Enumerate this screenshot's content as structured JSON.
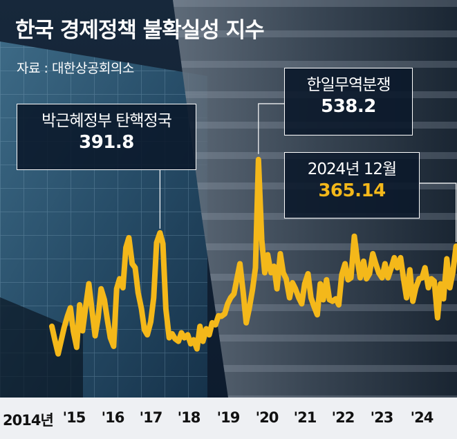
{
  "title": "한국 경제정책 불확실성 지수",
  "source": "자료 : 대한상공회의소",
  "colors": {
    "line": "#f4b81a",
    "highlight_value": "#f4b81a",
    "callout_border": "#ffffff"
  },
  "callouts": {
    "impeachment": {
      "label": "박근혜정부 탄핵정국",
      "value": "391.8"
    },
    "trade_dispute": {
      "label": "한일무역분쟁",
      "value": "538.2"
    },
    "latest": {
      "label": "2024년 12월",
      "value": "365.14"
    }
  },
  "chart_data": {
    "type": "line",
    "title": "한국 경제정책 불확실성 지수",
    "xlabel": "",
    "ylabel": "",
    "tick_labels": [
      "2014년",
      "'15",
      "'16",
      "'17",
      "'18",
      "'19",
      "'20",
      "'21",
      "'22",
      "'23",
      "'24"
    ],
    "grid": false,
    "legend": "none",
    "ylim": [
      100,
      560
    ],
    "x_start": 2014.0,
    "x_end": 2025.0,
    "series": [
      {
        "points": [
          [
            2014.0,
            205
          ],
          [
            2014.08,
            178
          ],
          [
            2014.17,
            150
          ],
          [
            2014.25,
            176
          ],
          [
            2014.33,
            202
          ],
          [
            2014.42,
            225
          ],
          [
            2014.5,
            242
          ],
          [
            2014.58,
            195
          ],
          [
            2014.67,
            163
          ],
          [
            2014.75,
            248
          ],
          [
            2014.83,
            196
          ],
          [
            2014.92,
            248
          ],
          [
            2015.0,
            290
          ],
          [
            2015.08,
            240
          ],
          [
            2015.17,
            186
          ],
          [
            2015.25,
            222
          ],
          [
            2015.33,
            280
          ],
          [
            2015.42,
            258
          ],
          [
            2015.5,
            218
          ],
          [
            2015.58,
            182
          ],
          [
            2015.67,
            165
          ],
          [
            2015.75,
            280
          ],
          [
            2015.83,
            300
          ],
          [
            2015.92,
            282
          ],
          [
            2016.0,
            362
          ],
          [
            2016.08,
            382
          ],
          [
            2016.17,
            330
          ],
          [
            2016.25,
            322
          ],
          [
            2016.33,
            272
          ],
          [
            2016.42,
            240
          ],
          [
            2016.5,
            198
          ],
          [
            2016.58,
            188
          ],
          [
            2016.67,
            214
          ],
          [
            2016.75,
            262
          ],
          [
            2016.83,
            372
          ],
          [
            2016.92,
            391.8
          ],
          [
            2017.0,
            370
          ],
          [
            2017.08,
            240
          ],
          [
            2017.17,
            182
          ],
          [
            2017.25,
            190
          ],
          [
            2017.33,
            180
          ],
          [
            2017.42,
            175
          ],
          [
            2017.5,
            192
          ],
          [
            2017.58,
            182
          ],
          [
            2017.67,
            188
          ],
          [
            2017.75,
            170
          ],
          [
            2017.83,
            178
          ],
          [
            2017.92,
            160
          ],
          [
            2018.0,
            205
          ],
          [
            2018.08,
            175
          ],
          [
            2018.17,
            200
          ],
          [
            2018.25,
            188
          ],
          [
            2018.33,
            212
          ],
          [
            2018.42,
            208
          ],
          [
            2018.5,
            226
          ],
          [
            2018.58,
            225
          ],
          [
            2018.67,
            230
          ],
          [
            2018.75,
            250
          ],
          [
            2018.83,
            262
          ],
          [
            2018.92,
            270
          ],
          [
            2019.0,
            300
          ],
          [
            2019.08,
            330
          ],
          [
            2019.17,
            272
          ],
          [
            2019.25,
            212
          ],
          [
            2019.33,
            240
          ],
          [
            2019.42,
            278
          ],
          [
            2019.5,
            322
          ],
          [
            2019.58,
            538.2
          ],
          [
            2019.67,
            378
          ],
          [
            2019.75,
            312
          ],
          [
            2019.83,
            348
          ],
          [
            2019.92,
            312
          ],
          [
            2020.0,
            325
          ],
          [
            2020.08,
            280
          ],
          [
            2020.17,
            350
          ],
          [
            2020.25,
            312
          ],
          [
            2020.33,
            300
          ],
          [
            2020.42,
            262
          ],
          [
            2020.5,
            292
          ],
          [
            2020.58,
            280
          ],
          [
            2020.67,
            262
          ],
          [
            2020.75,
            250
          ],
          [
            2020.83,
            290
          ],
          [
            2020.92,
            310
          ],
          [
            2021.0,
            262
          ],
          [
            2021.08,
            245
          ],
          [
            2021.17,
            228
          ],
          [
            2021.25,
            290
          ],
          [
            2021.33,
            258
          ],
          [
            2021.42,
            298
          ],
          [
            2021.5,
            258
          ],
          [
            2021.58,
            255
          ],
          [
            2021.67,
            260
          ],
          [
            2021.75,
            248
          ],
          [
            2021.83,
            308
          ],
          [
            2021.92,
            330
          ],
          [
            2022.0,
            298
          ],
          [
            2022.08,
            302
          ],
          [
            2022.17,
            385
          ],
          [
            2022.25,
            338
          ],
          [
            2022.33,
            302
          ],
          [
            2022.42,
            335
          ],
          [
            2022.5,
            300
          ],
          [
            2022.58,
            310
          ],
          [
            2022.67,
            350
          ],
          [
            2022.75,
            330
          ],
          [
            2022.83,
            312
          ],
          [
            2022.92,
            302
          ],
          [
            2023.0,
            330
          ],
          [
            2023.08,
            302
          ],
          [
            2023.17,
            322
          ],
          [
            2023.25,
            342
          ],
          [
            2023.33,
            322
          ],
          [
            2023.42,
            342
          ],
          [
            2023.5,
            300
          ],
          [
            2023.58,
            262
          ],
          [
            2023.67,
            318
          ],
          [
            2023.75,
            255
          ],
          [
            2023.83,
            282
          ],
          [
            2023.92,
            300
          ],
          [
            2024.0,
            302
          ],
          [
            2024.08,
            322
          ],
          [
            2024.17,
            282
          ],
          [
            2024.25,
            300
          ],
          [
            2024.33,
            295
          ],
          [
            2024.42,
            222
          ],
          [
            2024.5,
            290
          ],
          [
            2024.58,
            260
          ],
          [
            2024.67,
            340
          ],
          [
            2024.75,
            282
          ],
          [
            2024.83,
            312
          ],
          [
            2024.92,
            365.14
          ]
        ]
      }
    ]
  }
}
